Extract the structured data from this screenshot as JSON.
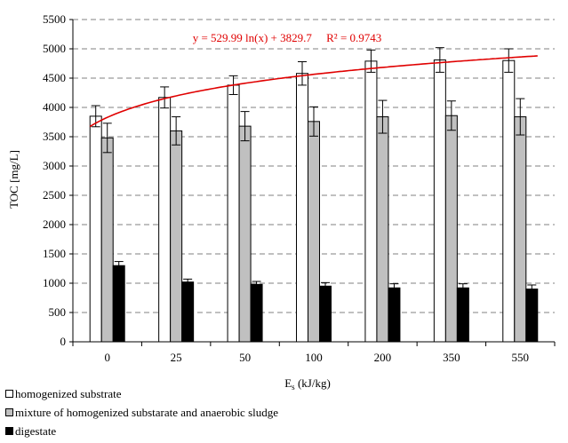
{
  "chart_data": {
    "type": "bar",
    "categories": [
      "0",
      "25",
      "50",
      "100",
      "200",
      "350",
      "550"
    ],
    "series": [
      {
        "name": "homogenized substrate",
        "color": "#ffffff",
        "values": [
          3850,
          4170,
          4380,
          4580,
          4790,
          4810,
          4800
        ],
        "errors": [
          180,
          180,
          160,
          200,
          190,
          210,
          200
        ]
      },
      {
        "name": "mixture of homogenized substarate and anaerobic sludge",
        "color": "#c0c0c0",
        "values": [
          3480,
          3600,
          3680,
          3760,
          3840,
          3860,
          3840
        ],
        "errors": [
          250,
          240,
          250,
          250,
          280,
          250,
          310
        ]
      },
      {
        "name": "digestate",
        "color": "#000000",
        "values": [
          1300,
          1020,
          980,
          950,
          920,
          920,
          900
        ],
        "errors": [
          70,
          50,
          50,
          60,
          70,
          70,
          70
        ]
      }
    ],
    "trendline": {
      "label": "y = 529.99 ln(x) + 3829.7     R² = 0.9743",
      "a": 529.99,
      "b": 3829.7,
      "color": "#e00000"
    },
    "xlabel_main": "E",
    "xlabel_sub": "s",
    "xlabel_unit": " (kJ/kg)",
    "ylabel": "TOC [mg/L]",
    "ylim": [
      0,
      5500
    ],
    "yticks": [
      0,
      500,
      1000,
      1500,
      2000,
      2500,
      3000,
      3500,
      4000,
      4500,
      5000,
      5500
    ],
    "grid": true,
    "legend_position": "bottom-left"
  }
}
